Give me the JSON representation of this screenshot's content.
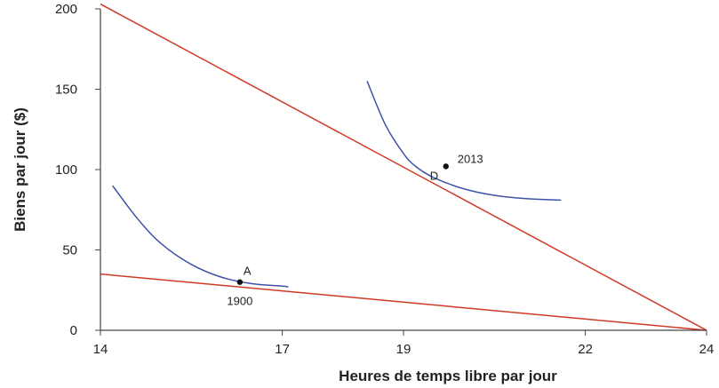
{
  "chart_data": {
    "type": "line",
    "title": "",
    "xlabel": "Heures de temps libre par jour",
    "ylabel": "Biens par jour ($)",
    "xlim": [
      14,
      24
    ],
    "ylim": [
      0,
      200
    ],
    "x_ticks": [
      14,
      17,
      19,
      22,
      24
    ],
    "x_tick_labels": [
      "14",
      "17",
      "19",
      "22",
      "24"
    ],
    "y_ticks": [
      0,
      50,
      100,
      150,
      200
    ],
    "y_tick_labels": [
      "0",
      "50",
      "100",
      "150",
      "200"
    ],
    "grid": false,
    "colors": {
      "budget": "#d03a25",
      "indifference": "#3f51a8",
      "axis": "#444444",
      "point": "#111111"
    },
    "budget_lines": [
      {
        "x": [
          14,
          24
        ],
        "y": [
          35,
          0
        ]
      },
      {
        "x": [
          14,
          24
        ],
        "y": [
          203,
          0
        ]
      }
    ],
    "indifference_curves": [
      {
        "x": [
          14.2,
          14.6,
          15.0,
          15.5,
          16.0,
          16.5,
          17.0,
          17.1
        ],
        "y": [
          90,
          70,
          54,
          41,
          33,
          29,
          27.5,
          27
        ]
      },
      {
        "x": [
          18.4,
          18.7,
          19.0,
          19.2,
          19.5,
          20.0,
          20.5,
          21.0,
          21.6
        ],
        "y": [
          155,
          128,
          110,
          102,
          95,
          88,
          84,
          82,
          81
        ]
      }
    ],
    "points": [
      {
        "x": 16.3,
        "y": 30,
        "label": "A",
        "year": "1900"
      },
      {
        "x": 19.7,
        "y": 102,
        "label": "D",
        "year": "2013"
      }
    ]
  }
}
